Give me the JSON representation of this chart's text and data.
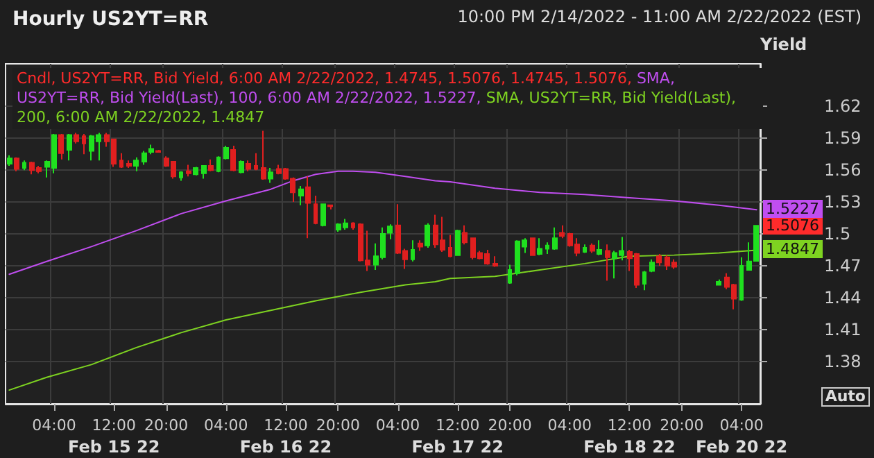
{
  "chart_data": {
    "type": "candlestick",
    "title": "Hourly US2YT=RR",
    "subtitle": "10:00 PM 2/14/2022 - 11:00 AM 2/22/2022 (EST)",
    "ylabel": "Yield",
    "categories": [
      null,
      null,
      null,
      null,
      null,
      null,
      "04:00",
      null,
      null,
      null,
      null,
      null,
      null,
      null,
      "12:00\nFeb 15 22",
      null,
      null,
      null,
      null,
      null,
      null,
      "20:00",
      null,
      null,
      null,
      null,
      null,
      null,
      null,
      "04:00",
      null,
      null,
      null,
      null,
      null,
      null,
      null,
      "12:00\nFeb 16 22",
      null,
      null,
      null,
      null,
      null,
      null,
      "20:00",
      null,
      null,
      null,
      null,
      null,
      null,
      null,
      "04:00",
      null,
      null,
      null,
      null,
      null,
      null,
      null,
      "12:00\nFeb 17 22",
      null,
      null,
      null,
      null,
      null,
      null,
      "20:00",
      null,
      null,
      null,
      null,
      null,
      null,
      null,
      "04:00",
      null,
      null,
      null,
      null,
      null,
      null,
      null,
      "12:00\nFeb 18 22",
      null,
      null,
      null,
      null,
      null,
      null,
      "20:00",
      null,
      null,
      null,
      null,
      null,
      null,
      null,
      "04:00\nFeb 20 22",
      null,
      null
    ],
    "series": [
      {
        "name": "Cndl, US2YT=RR, Bid Yield, 6:00 AM 2/22/2022, 1.4745, 1.5076, 1.4745, 1.5076,",
        "color": "#ff2b2b",
        "colors": [
          "#1fe01f",
          "#e01f1f",
          "#1fe01f",
          "#e01f1f",
          "#e01f1f",
          "#1fe01f",
          "#1fe01f",
          "#e01f1f",
          "#1fe01f",
          "#e01f1f",
          "#e01f1f",
          "#1fe01f",
          "#1fe01f",
          "#e01f1f",
          "#e01f1f",
          "#e01f1f",
          "#e01f1f",
          "#1fe01f",
          "#1fe01f",
          "#1fe01f",
          "#e01f1f",
          "#e01f1f",
          "#e01f1f",
          "#1fe01f",
          "#e01f1f",
          "#1fe01f",
          "#1fe01f",
          "#e01f1f",
          "#1fe01f",
          "#1fe01f",
          "#e01f1f",
          "#1fe01f",
          "#e01f1f",
          "#e01f1f",
          "#e01f1f",
          "#1fe01f",
          "#e01f1f",
          "#e01f1f",
          "#e01f1f",
          "#1fe01f",
          "#e01f1f",
          "#e01f1f",
          "#1fe01f",
          "#e01f1f",
          "#1fe01f",
          "#1fe01f",
          "#e01f1f",
          "#e01f1f",
          "#e01f1f",
          "#1fe01f",
          "#1fe01f",
          "#1fe01f",
          "#e01f1f",
          "#e01f1f",
          "#1fe01f",
          "#e01f1f",
          "#1fe01f",
          "#e01f1f",
          "#e01f1f",
          "#e01f1f",
          "#1fe01f",
          "#e01f1f",
          "#e01f1f",
          "#e01f1f",
          "#e01f1f",
          "#e01f1f",
          null,
          "#1fe01f",
          "#1fe01f",
          "#1fe01f",
          "#e01f1f",
          "#1fe01f",
          "#1fe01f",
          "#1fe01f",
          "#e01f1f",
          "#e01f1f",
          "#e01f1f",
          "#1fe01f",
          "#e01f1f",
          "#1fe01f",
          "#e01f1f",
          "#1fe01f",
          "#1fe01f",
          "#e01f1f",
          "#e01f1f",
          "#1fe01f",
          "#1fe01f",
          "#e01f1f",
          "#e01f1f",
          "#e01f1f",
          null,
          null,
          null,
          null,
          null,
          "#1fe01f",
          "#e01f1f",
          "#e01f1f",
          "#1fe01f",
          "#1fe01f",
          "#1fe01f"
        ],
        "value_labels": [
          null,
          null,
          null,
          null,
          null,
          null,
          null,
          null,
          null,
          null,
          null,
          null,
          null,
          null,
          null,
          null,
          null,
          null,
          null,
          null,
          null,
          null,
          null,
          null,
          null,
          null,
          null,
          null,
          null,
          null,
          null,
          null,
          null,
          null,
          null,
          null,
          null,
          null,
          null,
          null,
          null,
          null,
          null,
          null,
          null,
          null,
          null,
          null,
          null,
          null,
          null,
          null,
          null,
          null,
          null,
          null,
          null,
          null,
          null,
          null,
          null,
          null,
          null,
          null,
          null,
          null,
          null,
          null,
          null,
          null,
          null,
          null,
          null,
          null,
          null,
          null,
          null,
          null,
          null,
          null,
          null,
          null,
          null,
          null,
          null,
          null,
          null,
          null,
          null,
          null,
          null,
          null,
          null,
          null,
          null,
          null,
          null,
          null,
          null,
          null,
          "1.5076"
        ],
        "ohlc": [
          [
            1.566,
            1.574,
            1.564,
            1.571
          ],
          [
            1.571,
            1.572,
            1.559,
            1.561
          ],
          [
            1.562,
            1.569,
            1.56,
            1.567
          ],
          [
            1.567,
            1.568,
            1.556,
            1.56
          ],
          [
            1.562,
            1.564,
            1.557,
            1.559
          ],
          [
            1.563,
            1.569,
            1.553,
            1.568
          ],
          [
            1.562,
            1.594,
            1.557,
            1.593
          ],
          [
            1.593,
            1.594,
            1.57,
            1.576
          ],
          [
            1.579,
            1.594,
            1.569,
            1.593
          ],
          [
            1.593,
            1.595,
            1.585,
            1.587
          ],
          [
            1.592,
            1.594,
            1.575,
            1.585
          ],
          [
            1.578,
            1.593,
            1.569,
            1.592
          ],
          [
            1.587,
            1.595,
            1.569,
            1.593
          ],
          [
            1.593,
            1.595,
            1.582,
            1.587
          ],
          [
            1.589,
            1.589,
            1.563,
            1.566
          ],
          [
            1.569,
            1.576,
            1.562,
            1.563
          ],
          [
            1.566,
            1.569,
            1.562,
            1.564
          ],
          [
            1.564,
            1.572,
            1.559,
            1.569
          ],
          [
            1.568,
            1.578,
            1.565,
            1.576
          ],
          [
            1.577,
            1.584,
            1.575,
            1.58
          ],
          [
            1.578,
            1.579,
            1.577,
            1.577
          ],
          [
            1.571,
            1.573,
            1.563,
            1.564
          ],
          [
            1.568,
            1.568,
            1.552,
            1.554
          ],
          [
            1.553,
            1.559,
            1.55,
            1.558
          ],
          [
            1.559,
            1.565,
            1.554,
            1.557
          ],
          [
            1.556,
            1.563,
            1.555,
            1.562
          ],
          [
            1.557,
            1.564,
            1.552,
            1.564
          ],
          [
            1.564,
            1.57,
            1.559,
            1.56
          ],
          [
            1.559,
            1.573,
            1.558,
            1.572
          ],
          [
            1.571,
            1.583,
            1.57,
            1.581
          ],
          [
            1.579,
            1.583,
            1.559,
            1.56
          ],
          [
            1.558,
            1.569,
            1.557,
            1.568
          ],
          [
            1.566,
            1.569,
            1.559,
            1.561
          ],
          [
            1.564,
            1.576,
            1.56,
            1.561
          ],
          [
            1.562,
            1.597,
            1.551,
            1.552
          ],
          [
            1.552,
            1.562,
            1.548,
            1.558
          ],
          [
            1.561,
            1.565,
            1.556,
            1.557
          ],
          [
            1.561,
            1.562,
            1.551,
            1.552
          ],
          [
            1.552,
            1.553,
            1.53,
            1.539
          ],
          [
            1.536,
            1.545,
            1.527,
            1.542
          ],
          [
            1.544,
            1.554,
            1.496,
            1.529
          ],
          [
            1.528,
            1.536,
            1.509,
            1.51
          ],
          [
            1.508,
            1.528,
            1.507,
            1.528
          ],
          [
            1.527,
            1.527,
            1.523,
            1.526
          ],
          [
            1.504,
            1.51,
            1.502,
            1.509
          ],
          [
            1.506,
            1.514,
            1.504,
            1.51
          ],
          [
            1.51,
            1.511,
            1.504,
            1.506
          ],
          [
            1.509,
            1.51,
            1.474,
            1.475
          ],
          [
            1.475,
            1.503,
            1.465,
            1.471
          ],
          [
            1.471,
            1.491,
            1.466,
            1.479
          ],
          [
            1.478,
            1.506,
            1.476,
            1.5
          ],
          [
            1.501,
            1.509,
            1.495,
            1.507
          ],
          [
            1.508,
            1.528,
            1.481,
            1.482
          ],
          [
            1.484,
            1.486,
            1.467,
            1.476
          ],
          [
            1.476,
            1.494,
            1.474,
            1.485
          ],
          [
            1.491,
            1.494,
            1.484,
            1.488
          ],
          [
            1.489,
            1.51,
            1.487,
            1.508
          ],
          [
            1.508,
            1.518,
            1.487,
            1.49
          ],
          [
            1.494,
            1.516,
            1.483,
            1.485
          ],
          [
            1.487,
            1.499,
            1.478,
            1.479
          ],
          [
            1.48,
            1.504,
            1.48,
            1.503
          ],
          [
            1.501,
            1.508,
            1.49,
            1.492
          ],
          [
            1.496,
            1.496,
            1.476,
            1.478
          ],
          [
            1.482,
            1.484,
            1.476,
            1.477
          ],
          [
            1.481,
            1.485,
            1.471,
            1.472
          ],
          [
            1.472,
            1.479,
            1.469,
            1.47
          ],
          null,
          [
            1.454,
            1.471,
            1.453,
            1.466
          ],
          [
            1.463,
            1.494,
            1.461,
            1.493
          ],
          [
            1.488,
            1.496,
            1.482,
            1.494
          ],
          [
            1.496,
            1.496,
            1.48,
            1.48
          ],
          [
            1.481,
            1.496,
            1.48,
            1.486
          ],
          [
            1.486,
            1.492,
            1.481,
            1.489
          ],
          [
            1.486,
            1.506,
            1.485,
            1.496
          ],
          [
            1.501,
            1.508,
            1.496,
            1.498
          ],
          [
            1.5,
            1.501,
            1.488,
            1.489
          ],
          [
            1.49,
            1.496,
            1.479,
            1.482
          ],
          [
            1.483,
            1.49,
            1.482,
            1.487
          ],
          [
            1.489,
            1.491,
            1.482,
            1.484
          ],
          [
            1.481,
            1.494,
            1.48,
            1.485
          ],
          [
            1.484,
            1.49,
            1.456,
            1.478
          ],
          [
            1.477,
            1.484,
            1.458,
            1.482
          ],
          [
            1.48,
            1.497,
            1.475,
            1.484
          ],
          [
            1.483,
            1.485,
            1.465,
            1.477
          ],
          [
            1.481,
            1.482,
            1.449,
            1.452
          ],
          [
            1.453,
            1.465,
            1.447,
            1.464
          ],
          [
            1.465,
            1.476,
            1.464,
            1.473
          ],
          [
            1.479,
            1.481,
            1.47,
            1.473
          ],
          [
            1.478,
            1.48,
            1.466,
            1.47
          ],
          [
            1.473,
            1.476,
            1.467,
            1.469
          ],
          null,
          null,
          null,
          null,
          null,
          [
            1.452,
            1.457,
            1.452,
            1.455
          ],
          [
            1.459,
            1.463,
            1.448,
            1.45
          ],
          [
            1.452,
            1.453,
            1.429,
            1.439
          ],
          [
            1.438,
            1.478,
            1.437,
            1.47
          ],
          [
            1.466,
            1.492,
            1.466,
            1.474
          ],
          [
            1.4745,
            1.5076,
            1.4745,
            1.5076
          ]
        ]
      },
      {
        "type": "line",
        "name": "SMA, US2YT=RR, Bid Yield(Last),  100, 6:00 AM 2/22/2022, 1.5227,",
        "color": "#c04ef0",
        "value_labels": [
          null,
          null,
          null,
          null,
          null,
          null,
          null,
          null,
          null,
          null,
          null,
          null,
          null,
          null,
          null,
          null,
          null,
          null,
          null,
          null,
          null,
          null,
          null,
          null,
          null,
          null,
          null,
          null,
          null,
          null,
          null,
          null,
          null,
          null,
          null,
          null,
          null,
          null,
          null,
          null,
          null,
          null,
          null,
          null,
          null,
          null,
          null,
          null,
          null,
          null,
          null,
          null,
          null,
          null,
          null,
          null,
          null,
          null,
          null,
          null,
          null,
          null,
          null,
          null,
          null,
          null,
          null,
          null,
          null,
          null,
          null,
          null,
          null,
          null,
          null,
          null,
          null,
          null,
          null,
          null,
          null,
          null,
          null,
          null,
          null,
          null,
          null,
          null,
          null,
          null,
          null,
          null,
          null,
          null,
          null,
          null,
          null,
          null,
          null,
          null,
          "1.5227"
        ],
        "values": [
          1.462,
          null,
          null,
          null,
          null,
          1.474,
          null,
          null,
          null,
          null,
          null,
          1.488,
          null,
          null,
          null,
          null,
          null,
          1.503,
          null,
          null,
          null,
          null,
          null,
          1.519,
          null,
          null,
          null,
          null,
          null,
          1.531,
          null,
          null,
          null,
          null,
          null,
          1.542,
          null,
          null,
          1.55,
          null,
          null,
          1.556,
          null,
          null,
          1.559,
          null,
          1.559,
          null,
          null,
          1.558,
          null,
          null,
          null,
          1.554,
          null,
          null,
          null,
          1.55,
          null,
          1.549,
          null,
          null,
          null,
          null,
          null,
          1.543,
          null,
          null,
          null,
          null,
          null,
          1.539,
          null,
          null,
          null,
          null,
          null,
          1.537,
          null,
          null,
          null,
          null,
          null,
          1.534,
          null,
          null,
          null,
          null,
          null,
          1.531,
          null,
          null,
          null,
          null,
          null,
          1.527,
          null,
          null,
          null,
          null,
          1.5227
        ]
      },
      {
        "type": "line",
        "name": "SMA, US2YT=RR, Bid Yield(Last),  200, 6:00 AM 2/22/2022, 1.4847",
        "color": "#7ed321",
        "value_labels": [
          null,
          null,
          null,
          null,
          null,
          null,
          null,
          null,
          null,
          null,
          null,
          null,
          null,
          null,
          null,
          null,
          null,
          null,
          null,
          null,
          null,
          null,
          null,
          null,
          null,
          null,
          null,
          null,
          null,
          null,
          null,
          null,
          null,
          null,
          null,
          null,
          null,
          null,
          null,
          null,
          null,
          null,
          null,
          null,
          null,
          null,
          null,
          null,
          null,
          null,
          null,
          null,
          null,
          null,
          null,
          null,
          null,
          null,
          null,
          null,
          null,
          null,
          null,
          null,
          null,
          null,
          null,
          null,
          null,
          null,
          null,
          null,
          null,
          null,
          null,
          null,
          null,
          null,
          null,
          null,
          null,
          null,
          null,
          null,
          null,
          null,
          null,
          null,
          null,
          null,
          null,
          null,
          null,
          null,
          null,
          null,
          null,
          null,
          null,
          null,
          "1.4847"
        ],
        "values": [
          1.353,
          null,
          null,
          null,
          null,
          1.365,
          null,
          null,
          null,
          null,
          null,
          1.377,
          null,
          null,
          null,
          null,
          null,
          1.393,
          null,
          null,
          null,
          null,
          null,
          1.407,
          null,
          null,
          null,
          null,
          null,
          1.419,
          null,
          null,
          null,
          null,
          null,
          1.428,
          null,
          null,
          null,
          null,
          null,
          1.437,
          null,
          null,
          null,
          null,
          null,
          1.445,
          null,
          null,
          null,
          null,
          null,
          1.452,
          null,
          null,
          null,
          1.455,
          null,
          1.458,
          null,
          null,
          null,
          null,
          null,
          1.46,
          null,
          null,
          null,
          null,
          null,
          1.466,
          null,
          null,
          null,
          null,
          null,
          1.472,
          null,
          null,
          null,
          null,
          null,
          1.479,
          null,
          null,
          null,
          null,
          null,
          1.48,
          null,
          null,
          null,
          null,
          null,
          1.482,
          null,
          null,
          null,
          null,
          1.4847
        ]
      }
    ],
    "ylim": [
      1.34,
      1.66
    ],
    "yticks": [
      1.38,
      1.41,
      1.44,
      1.47,
      1.5,
      1.53,
      1.56,
      1.59,
      1.62
    ],
    "grid": true,
    "legend": "top left",
    "marker": "none",
    "line_style": "solid",
    "annotations": [
      "Auto"
    ]
  }
}
